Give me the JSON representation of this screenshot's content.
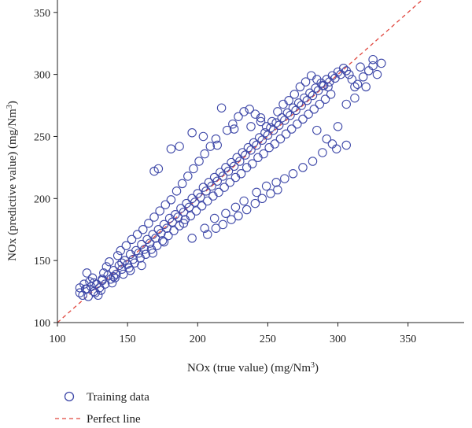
{
  "chart_data": {
    "type": "scatter",
    "xlabel": "NOx (true value) (mg/Nm",
    "xlabel_unit_sup": "3",
    "xlabel_suffix": ")",
    "ylabel": "NOx (predictive value) (mg/Nm",
    "ylabel_unit_sup": "3",
    "ylabel_suffix": ")",
    "xlim": [
      100,
      390
    ],
    "ylim": [
      100,
      360
    ],
    "x_ticks": [
      100,
      150,
      200,
      250,
      300,
      350
    ],
    "y_ticks": [
      100,
      150,
      200,
      250,
      300,
      350
    ],
    "grid": false,
    "legend_placement": "bottom-left",
    "colors": {
      "marker": "#3e48a8",
      "perfect_line": "#e0473f"
    },
    "series": [
      {
        "name": "Training data",
        "marker": "circle-open",
        "points": [
          [
            116,
            124
          ],
          [
            118,
            122
          ],
          [
            120,
            127
          ],
          [
            122,
            121
          ],
          [
            124,
            129
          ],
          [
            126,
            125
          ],
          [
            128,
            131
          ],
          [
            130,
            128
          ],
          [
            132,
            134
          ],
          [
            134,
            131
          ],
          [
            136,
            138
          ],
          [
            138,
            135
          ],
          [
            140,
            142
          ],
          [
            142,
            139
          ],
          [
            144,
            146
          ],
          [
            146,
            143
          ],
          [
            148,
            150
          ],
          [
            150,
            147
          ],
          [
            152,
            155
          ],
          [
            154,
            151
          ],
          [
            156,
            158
          ],
          [
            158,
            156
          ],
          [
            160,
            163
          ],
          [
            162,
            159
          ],
          [
            164,
            167
          ],
          [
            166,
            164
          ],
          [
            168,
            171
          ],
          [
            170,
            168
          ],
          [
            172,
            175
          ],
          [
            174,
            172
          ],
          [
            176,
            179
          ],
          [
            178,
            176
          ],
          [
            180,
            184
          ],
          [
            182,
            181
          ],
          [
            184,
            187
          ],
          [
            186,
            185
          ],
          [
            188,
            192
          ],
          [
            190,
            189
          ],
          [
            192,
            196
          ],
          [
            194,
            193
          ],
          [
            196,
            200
          ],
          [
            198,
            197
          ],
          [
            200,
            204
          ],
          [
            202,
            201
          ],
          [
            204,
            209
          ],
          [
            206,
            206
          ],
          [
            208,
            213
          ],
          [
            210,
            210
          ],
          [
            212,
            217
          ],
          [
            214,
            214
          ],
          [
            216,
            221
          ],
          [
            218,
            218
          ],
          [
            220,
            225
          ],
          [
            222,
            222
          ],
          [
            224,
            229
          ],
          [
            226,
            226
          ],
          [
            228,
            233
          ],
          [
            230,
            230
          ],
          [
            232,
            237
          ],
          [
            234,
            235
          ],
          [
            236,
            241
          ],
          [
            238,
            239
          ],
          [
            240,
            245
          ],
          [
            242,
            243
          ],
          [
            244,
            249
          ],
          [
            246,
            247
          ],
          [
            248,
            253
          ],
          [
            250,
            251
          ],
          [
            252,
            257
          ],
          [
            254,
            255
          ],
          [
            256,
            261
          ],
          [
            258,
            259
          ],
          [
            260,
            265
          ],
          [
            262,
            263
          ],
          [
            264,
            269
          ],
          [
            266,
            267
          ],
          [
            268,
            273
          ],
          [
            270,
            271
          ],
          [
            272,
            277
          ],
          [
            274,
            275
          ],
          [
            276,
            281
          ],
          [
            278,
            279
          ],
          [
            280,
            285
          ],
          [
            282,
            283
          ],
          [
            284,
            289
          ],
          [
            286,
            287
          ],
          [
            288,
            293
          ],
          [
            290,
            291
          ],
          [
            292,
            296
          ],
          [
            294,
            294
          ],
          [
            296,
            299
          ],
          [
            298,
            297
          ],
          [
            300,
            302
          ],
          [
            302,
            300
          ],
          [
            304,
            305
          ],
          [
            306,
            303
          ],
          [
            308,
            300
          ],
          [
            310,
            296
          ],
          [
            312,
            290
          ],
          [
            314,
            292
          ],
          [
            116,
            128
          ],
          [
            119,
            131
          ],
          [
            121,
            140
          ],
          [
            123,
            133
          ],
          [
            125,
            136
          ],
          [
            127,
            124
          ],
          [
            129,
            122
          ],
          [
            131,
            126
          ],
          [
            133,
            140
          ],
          [
            135,
            145
          ],
          [
            137,
            149
          ],
          [
            139,
            132
          ],
          [
            141,
            136
          ],
          [
            143,
            154
          ],
          [
            145,
            158
          ],
          [
            147,
            139
          ],
          [
            149,
            162
          ],
          [
            151,
            144
          ],
          [
            153,
            167
          ],
          [
            155,
            148
          ],
          [
            157,
            171
          ],
          [
            159,
            152
          ],
          [
            161,
            175
          ],
          [
            163,
            155
          ],
          [
            165,
            180
          ],
          [
            167,
            159
          ],
          [
            169,
            185
          ],
          [
            171,
            162
          ],
          [
            173,
            190
          ],
          [
            175,
            166
          ],
          [
            177,
            195
          ],
          [
            179,
            170
          ],
          [
            181,
            199
          ],
          [
            183,
            174
          ],
          [
            185,
            206
          ],
          [
            187,
            178
          ],
          [
            189,
            212
          ],
          [
            191,
            183
          ],
          [
            193,
            218
          ],
          [
            195,
            186
          ],
          [
            197,
            224
          ],
          [
            199,
            190
          ],
          [
            201,
            230
          ],
          [
            203,
            194
          ],
          [
            205,
            236
          ],
          [
            207,
            198
          ],
          [
            209,
            242
          ],
          [
            211,
            202
          ],
          [
            213,
            248
          ],
          [
            215,
            205
          ],
          [
            217,
            273
          ],
          [
            219,
            209
          ],
          [
            221,
            255
          ],
          [
            223,
            213
          ],
          [
            225,
            260
          ],
          [
            227,
            217
          ],
          [
            229,
            266
          ],
          [
            231,
            220
          ],
          [
            233,
            270
          ],
          [
            235,
            225
          ],
          [
            237,
            272
          ],
          [
            239,
            228
          ],
          [
            241,
            268
          ],
          [
            243,
            233
          ],
          [
            245,
            262
          ],
          [
            247,
            236
          ],
          [
            249,
            258
          ],
          [
            251,
            241
          ],
          [
            253,
            262
          ],
          [
            255,
            244
          ],
          [
            257,
            270
          ],
          [
            259,
            248
          ],
          [
            261,
            276
          ],
          [
            263,
            252
          ],
          [
            265,
            279
          ],
          [
            267,
            256
          ],
          [
            269,
            284
          ],
          [
            271,
            260
          ],
          [
            273,
            290
          ],
          [
            275,
            264
          ],
          [
            277,
            294
          ],
          [
            279,
            268
          ],
          [
            281,
            299
          ],
          [
            283,
            272
          ],
          [
            285,
            296
          ],
          [
            287,
            276
          ],
          [
            289,
            291
          ],
          [
            291,
            280
          ],
          [
            293,
            290
          ],
          [
            295,
            284
          ],
          [
            181,
            240
          ],
          [
            187,
            242
          ],
          [
            172,
            224
          ],
          [
            169,
            222
          ],
          [
            196,
            253
          ],
          [
            204,
            250
          ],
          [
            226,
            256
          ],
          [
            214,
            243
          ],
          [
            245,
            265
          ],
          [
            238,
            258
          ],
          [
            196,
            168
          ],
          [
            205,
            176
          ],
          [
            212,
            184
          ],
          [
            220,
            188
          ],
          [
            227,
            193
          ],
          [
            233,
            198
          ],
          [
            242,
            205
          ],
          [
            249,
            210
          ],
          [
            256,
            213
          ],
          [
            262,
            216
          ],
          [
            268,
            220
          ],
          [
            275,
            225
          ],
          [
            282,
            230
          ],
          [
            289,
            237
          ],
          [
            296,
            244
          ],
          [
            300,
            258
          ],
          [
            306,
            243
          ],
          [
            299,
            240
          ],
          [
            292,
            248
          ],
          [
            285,
            255
          ],
          [
            190,
            180
          ],
          [
            176,
            165
          ],
          [
            168,
            156
          ],
          [
            160,
            146
          ],
          [
            152,
            142
          ],
          [
            146,
            148
          ],
          [
            140,
            137
          ],
          [
            132,
            135
          ],
          [
            126,
            132
          ],
          [
            121,
            127
          ],
          [
            318,
            298
          ],
          [
            322,
            303
          ],
          [
            325,
            307
          ],
          [
            328,
            300
          ],
          [
            331,
            309
          ],
          [
            325,
            312
          ],
          [
            316,
            306
          ],
          [
            320,
            290
          ],
          [
            312,
            281
          ],
          [
            306,
            276
          ],
          [
            257,
            207
          ],
          [
            252,
            204
          ],
          [
            246,
            200
          ],
          [
            241,
            196
          ],
          [
            235,
            191
          ],
          [
            229,
            186
          ],
          [
            224,
            183
          ],
          [
            218,
            179
          ],
          [
            213,
            176
          ],
          [
            207,
            171
          ]
        ]
      }
    ],
    "reference_line": {
      "name": "Perfect line",
      "from": [
        100,
        100
      ],
      "to": [
        360,
        360
      ],
      "style": "dashed"
    }
  },
  "legend": {
    "items": [
      {
        "label": "Training data"
      },
      {
        "label": "Perfect line"
      }
    ]
  }
}
